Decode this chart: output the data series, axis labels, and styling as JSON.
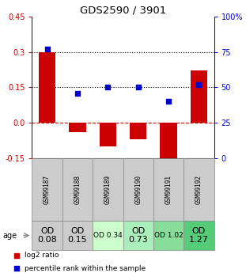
{
  "title": "GDS2590 / 3901",
  "samples": [
    "GSM99187",
    "GSM99188",
    "GSM99189",
    "GSM99190",
    "GSM99191",
    "GSM99192"
  ],
  "log2_ratio": [
    0.3,
    -0.04,
    -0.1,
    -0.07,
    -0.175,
    0.22
  ],
  "percentile_rank": [
    77,
    46,
    50,
    50,
    40,
    52
  ],
  "ylim_left": [
    -0.15,
    0.45
  ],
  "ylim_right": [
    0,
    100
  ],
  "yticks_left": [
    -0.15,
    0.0,
    0.15,
    0.3,
    0.45
  ],
  "yticks_right": [
    0,
    25,
    50,
    75,
    100
  ],
  "bar_color": "#cc0000",
  "dot_color": "#0000cc",
  "hline_dashed_red": 0.0,
  "hline_dotted_black": [
    0.15,
    0.3
  ],
  "age_labels": [
    "OD\n0.08",
    "OD\n0.15",
    "OD 0.34",
    "OD\n0.73",
    "OD 1.02",
    "OD\n1.27"
  ],
  "age_bg_colors": [
    "#cccccc",
    "#cccccc",
    "#ccffcc",
    "#aaeebb",
    "#88dd99",
    "#55cc77"
  ],
  "age_font_sizes": [
    8,
    8,
    6.5,
    8,
    6.5,
    8
  ],
  "label_legend_red": "log2 ratio",
  "label_legend_blue": "percentile rank within the sample",
  "tick_color_left": "#cc0000",
  "tick_color_right": "#0000cc",
  "bar_width": 0.55
}
